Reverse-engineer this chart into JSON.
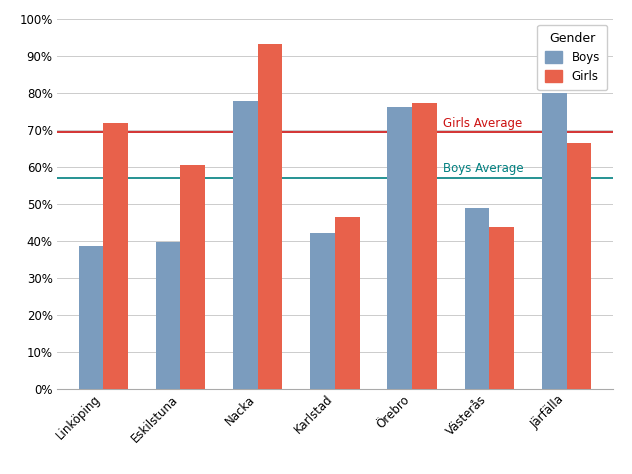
{
  "categories": [
    "Linköping",
    "Eskilstuna",
    "Nacka",
    "Karlstad",
    "Örebro",
    "Västerås",
    "Järfälla"
  ],
  "boys": [
    0.385,
    0.397,
    0.778,
    0.422,
    0.762,
    0.488,
    0.8
  ],
  "girls": [
    0.719,
    0.604,
    0.933,
    0.464,
    0.774,
    0.438,
    0.664
  ],
  "boys_avg": 0.57,
  "girls_avg": 0.693,
  "boys_color": "#7b9cbe",
  "girls_color": "#e8614b",
  "boys_avg_color": "#008080",
  "girls_avg_color": "#cc1111",
  "title": "Gender",
  "legend_labels": [
    "Boys",
    "Girls"
  ],
  "boys_avg_label": "Boys Average",
  "girls_avg_label": "Girls Average",
  "ylim": [
    0,
    1.0
  ],
  "yticks": [
    0.0,
    0.1,
    0.2,
    0.3,
    0.4,
    0.5,
    0.6,
    0.7,
    0.8,
    0.9,
    1.0
  ],
  "background_color": "#ffffff",
  "grid_color": "#cccccc",
  "bar_width": 0.32,
  "figsize": [
    6.32,
    4.74
  ],
  "dpi": 100
}
